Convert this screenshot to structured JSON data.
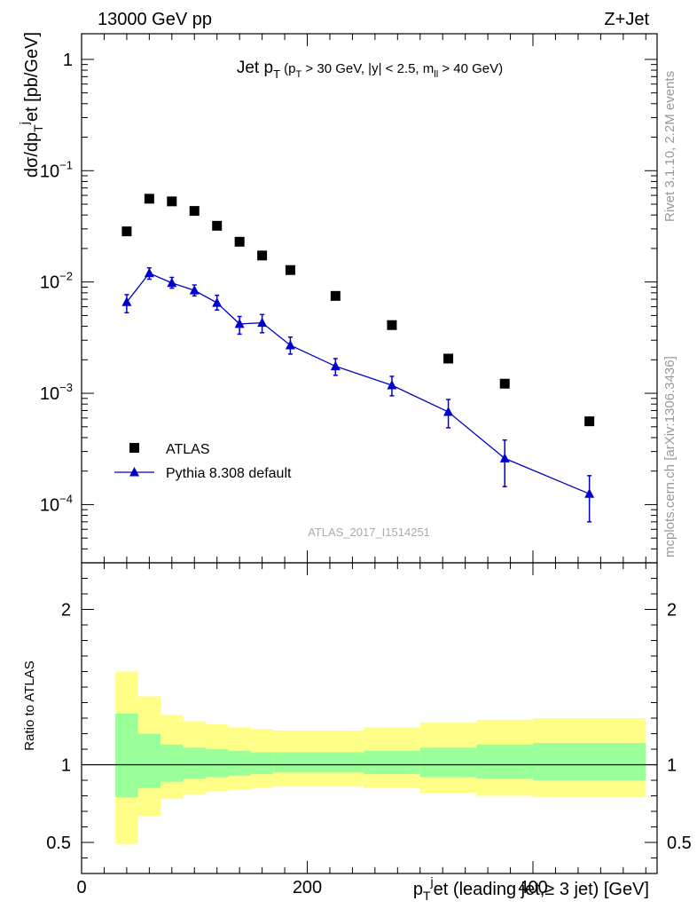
{
  "header": {
    "energy_label": "13000 GeV pp",
    "process_label": "Z+Jet"
  },
  "side_labels": {
    "rivet": "Rivet 3.1.10,  2.2M events",
    "mcplots": "mcplots.cern.ch [arXiv:1306.3436]"
  },
  "chart_data": [
    {
      "type": "scatter",
      "title_main": "Jet p",
      "title_main_sub": "T",
      "title_cut_1": " (p",
      "title_cut_1_sub": "T",
      "title_cut_2": " > 30 GeV, |y| < 2.5, m",
      "title_cut_2_sub": "ll",
      "title_cut_3": " > 40 GeV)",
      "ylabel_1": "dσ/dp",
      "ylabel_1_sub": "T",
      "ylabel_1_sup": "j",
      "ylabel_2": "et [pb/GeV]",
      "yscale": "log",
      "ylim": [
        3e-05,
        1.7
      ],
      "xlim": [
        0,
        510
      ],
      "yticks": [
        {
          "v": 1,
          "m": "1",
          "e": ""
        },
        {
          "v": 0.1,
          "m": "10",
          "e": "−1"
        },
        {
          "v": 0.01,
          "m": "10",
          "e": "−2"
        },
        {
          "v": 0.001,
          "m": "10",
          "e": "−3"
        },
        {
          "v": 0.0001,
          "m": "10",
          "e": "−4"
        }
      ],
      "watermark": "ATLAS_2017_I1514251",
      "legend_position": "lower-left",
      "series": [
        {
          "name": "ATLAS",
          "marker": "square",
          "color": "#000000",
          "x": [
            40,
            60,
            80,
            100,
            120,
            140,
            160,
            185,
            225,
            275,
            325,
            375,
            450
          ],
          "y": [
            0.0285,
            0.056,
            0.053,
            0.0435,
            0.032,
            0.023,
            0.0173,
            0.0128,
            0.0075,
            0.0041,
            0.00205,
            0.00122,
            0.00056
          ]
        },
        {
          "name": "Pythia 8.308 default",
          "marker": "triangle",
          "color": "#0000cc",
          "x": [
            40,
            60,
            80,
            100,
            120,
            140,
            160,
            185,
            225,
            275,
            325,
            375,
            450
          ],
          "y": [
            0.0066,
            0.012,
            0.0098,
            0.0084,
            0.0065,
            0.0042,
            0.0043,
            0.0027,
            0.00175,
            0.00118,
            0.00068,
            0.00026,
            0.000125
          ],
          "yerr_low": [
            0.0053,
            0.0106,
            0.0088,
            0.0075,
            0.0056,
            0.0034,
            0.0035,
            0.00225,
            0.00145,
            0.00095,
            0.00049,
            0.000145,
            7e-05
          ],
          "yerr_high": [
            0.0077,
            0.0134,
            0.011,
            0.0094,
            0.0076,
            0.0049,
            0.0051,
            0.0032,
            0.00205,
            0.00142,
            0.00088,
            0.00038,
            0.000182
          ]
        }
      ]
    },
    {
      "type": "area",
      "ylabel": "Ratio to ATLAS",
      "xlabel_1": "p",
      "xlabel_1_sub": "T",
      "xlabel_1_sup": "j",
      "xlabel_2": "et (leading jet,≥ 3 jet) [GeV]",
      "xlim": [
        0,
        510
      ],
      "ylim": [
        0.3,
        2.3
      ],
      "yticks": [
        0.5,
        1,
        2
      ],
      "ytick_labels": [
        "0.5",
        "1",
        "2"
      ],
      "xticks": [
        0,
        200,
        400
      ],
      "xtick_labels": [
        "0",
        "200",
        "400"
      ],
      "reference_line": 1,
      "bins": {
        "edges": [
          30,
          50,
          70,
          90,
          110,
          130,
          150,
          170,
          200,
          250,
          300,
          350,
          400,
          500
        ],
        "green_low": [
          0.79,
          0.85,
          0.89,
          0.91,
          0.92,
          0.93,
          0.94,
          0.95,
          0.95,
          0.94,
          0.92,
          0.91,
          0.9
        ],
        "green_high": [
          1.33,
          1.2,
          1.13,
          1.11,
          1.1,
          1.09,
          1.08,
          1.08,
          1.08,
          1.09,
          1.11,
          1.13,
          1.14
        ],
        "yellow_low": [
          0.49,
          0.67,
          0.78,
          0.81,
          0.83,
          0.84,
          0.85,
          0.86,
          0.86,
          0.85,
          0.82,
          0.8,
          0.79
        ],
        "yellow_high": [
          1.6,
          1.44,
          1.32,
          1.28,
          1.26,
          1.24,
          1.23,
          1.22,
          1.22,
          1.24,
          1.27,
          1.29,
          1.3
        ]
      },
      "band_colors": {
        "inner": "#99ff99",
        "outer": "#ffff88"
      }
    }
  ]
}
